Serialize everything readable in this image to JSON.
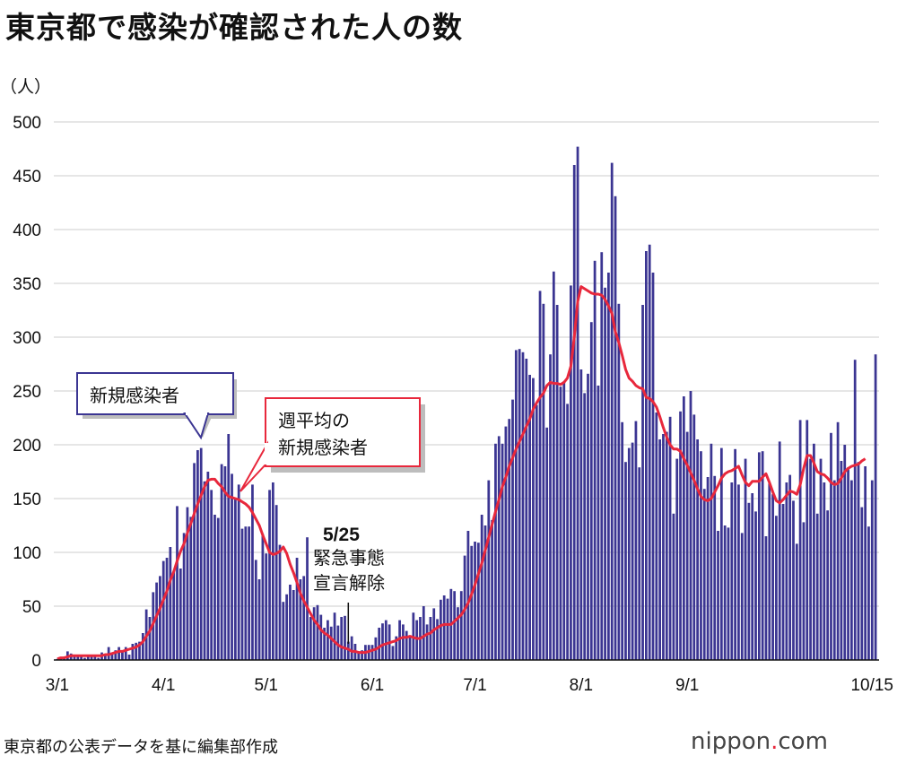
{
  "title": "東京都で感染が確認された人の数",
  "source": "東京都の公表データを基に編集部作成",
  "logo": {
    "main": "nippon",
    "dot": ".",
    "tld": "com"
  },
  "colors": {
    "bar": "#3b3592",
    "line": "#e8283c",
    "grid": "#cccccc",
    "callout_blue": "#3b3592",
    "callout_red": "#e8283c"
  },
  "callouts": {
    "daily": "新規感染者",
    "avg_line1": "週平均の",
    "avg_line2": "新規感染者"
  },
  "annotation": {
    "date": "5/25",
    "line1": "緊急事態",
    "line2": "宣言解除",
    "day_index": 85
  },
  "chart_data": {
    "type": "bar",
    "title": "東京都で感染が確認された人の数",
    "ylabel": "（人）",
    "xlabel": "",
    "ylim": [
      0,
      500
    ],
    "yticks": [
      0,
      50,
      100,
      150,
      200,
      250,
      300,
      350,
      400,
      450,
      500
    ],
    "start_date": "3/1",
    "xticks": [
      {
        "label": "3/1",
        "day": 0
      },
      {
        "label": "4/1",
        "day": 31
      },
      {
        "label": "5/1",
        "day": 61
      },
      {
        "label": "6/1",
        "day": 92
      },
      {
        "label": "7/1",
        "day": 122
      },
      {
        "label": "8/1",
        "day": 153
      },
      {
        "label": "9/1",
        "day": 184
      },
      {
        "label": "10/15",
        "day": 228
      }
    ],
    "series": [
      {
        "name": "新規感染者",
        "type": "bar",
        "values": [
          1,
          2,
          3,
          8,
          6,
          3,
          5,
          5,
          2,
          3,
          3,
          3,
          2,
          7,
          5,
          12,
          7,
          9,
          12,
          8,
          12,
          5,
          15,
          16,
          17,
          25,
          47,
          40,
          63,
          72,
          78,
          92,
          95,
          105,
          82,
          143,
          85,
          118,
          142,
          133,
          183,
          195,
          197,
          166,
          175,
          158,
          135,
          132,
          182,
          180,
          210,
          173,
          150,
          163,
          122,
          124,
          124,
          163,
          93,
          75,
          117,
          99,
          158,
          165,
          144,
          107,
          54,
          61,
          70,
          65,
          95,
          75,
          78,
          114,
          40,
          49,
          51,
          42,
          30,
          37,
          31,
          44,
          32,
          40,
          41,
          17,
          22,
          15,
          8,
          9,
          14,
          14,
          14,
          21,
          30,
          34,
          37,
          33,
          13,
          22,
          37,
          33,
          27,
          21,
          44,
          37,
          40,
          50,
          33,
          40,
          48,
          38,
          56,
          60,
          57,
          66,
          64,
          49,
          64,
          97,
          120,
          106,
          110,
          109,
          135,
          125,
          167,
          130,
          201,
          208,
          201,
          217,
          224,
          242,
          288,
          289,
          286,
          280,
          265,
          262,
          237,
          343,
          331,
          216,
          284,
          361,
          330,
          254,
          259,
          238,
          348,
          460,
          477,
          270,
          248,
          266,
          314,
          371,
          255,
          379,
          346,
          360,
          462,
          431,
          331,
          221,
          184,
          197,
          202,
          222,
          179,
          330,
          380,
          386,
          360,
          230,
          205,
          210,
          212,
          226,
          136,
          187,
          231,
          245,
          212,
          250,
          228,
          205,
          194,
          159,
          170,
          201,
          171,
          120,
          197,
          125,
          123,
          165,
          196,
          163,
          118,
          187,
          146,
          155,
          138,
          193,
          194,
          115,
          164,
          154,
          134,
          203,
          145,
          165,
          172,
          148,
          108,
          223,
          128,
          223,
          187,
          201,
          136,
          187,
          165,
          139,
          211,
          167,
          221,
          185,
          200,
          179,
          167,
          279,
          184,
          142,
          180,
          124,
          167,
          284
        ]
      },
      {
        "name": "週平均の新規感染者",
        "type": "line",
        "values": [
          1,
          2,
          2,
          3,
          4,
          4,
          4,
          4,
          4,
          4,
          4,
          4,
          4,
          4,
          5,
          5,
          6,
          7,
          8,
          8,
          9,
          10,
          11,
          12,
          14,
          17,
          22,
          27,
          34,
          41,
          48,
          56,
          64,
          74,
          82,
          92,
          101,
          108,
          118,
          127,
          136,
          145,
          153,
          161,
          167,
          168,
          168,
          164,
          161,
          156,
          152,
          151,
          150,
          149,
          147,
          145,
          142,
          137,
          131,
          125,
          116,
          108,
          100,
          98,
          99,
          101,
          105,
          99,
          89,
          81,
          72,
          62,
          55,
          49,
          43,
          37,
          33,
          28,
          25,
          23,
          20,
          17,
          14,
          12,
          11,
          10,
          8,
          8,
          7,
          7,
          7,
          8,
          9,
          10,
          12,
          14,
          15,
          16,
          17,
          18,
          20,
          21,
          21,
          22,
          21,
          20,
          20,
          22,
          24,
          25,
          28,
          30,
          32,
          33,
          33,
          33,
          36,
          39,
          42,
          47,
          53,
          61,
          70,
          80,
          90,
          102,
          114,
          126,
          138,
          149,
          161,
          170,
          180,
          188,
          196,
          203,
          210,
          217,
          224,
          233,
          239,
          244,
          248,
          255,
          258,
          257,
          257,
          256,
          258,
          262,
          273,
          300,
          333,
          347,
          345,
          343,
          341,
          340,
          340,
          339,
          335,
          329,
          322,
          305,
          295,
          283,
          270,
          262,
          259,
          255,
          253,
          252,
          244,
          243,
          240,
          235,
          226,
          216,
          207,
          200,
          196,
          196,
          194,
          187,
          181,
          174,
          167,
          159,
          152,
          149,
          148,
          150,
          156,
          162,
          169,
          173,
          175,
          176,
          178,
          180,
          172,
          165,
          162,
          166,
          166,
          166,
          170,
          173,
          165,
          156,
          148,
          146,
          149,
          153,
          157,
          156,
          154,
          163,
          178,
          190,
          190,
          183,
          175,
          173,
          172,
          169,
          165,
          163,
          164,
          169,
          175,
          178,
          180,
          181,
          182,
          185,
          187
        ]
      }
    ]
  }
}
